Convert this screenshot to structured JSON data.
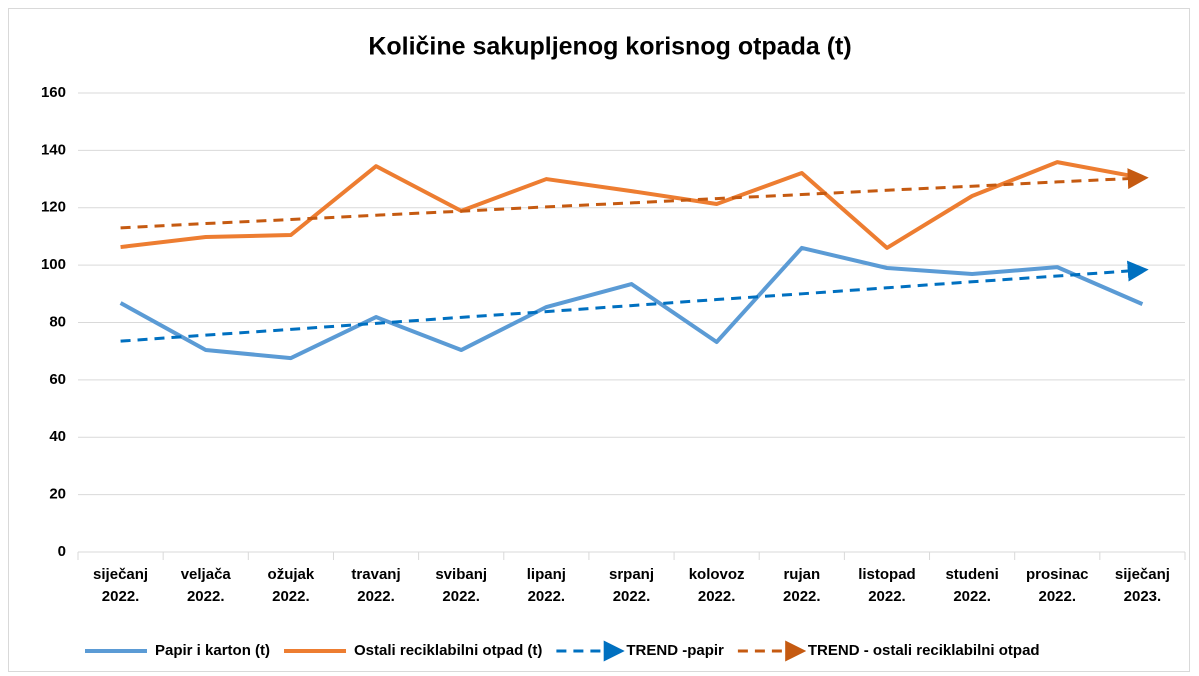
{
  "chart_data": {
    "type": "line",
    "title": "Količine sakupljenog korisnog otpada (t)",
    "categories": [
      "siječanj 2022.",
      "veljača 2022.",
      "ožujak 2022.",
      "travanj 2022.",
      "svibanj 2022.",
      "lipanj 2022.",
      "srpanj 2022.",
      "kolovoz 2022.",
      "rujan 2022.",
      "listopad 2022.",
      "studeni 2022.",
      "prosinac 2022.",
      "siječanj 2023."
    ],
    "series": [
      {
        "name": "Papir i karton (t)",
        "color": "#5b9bd5",
        "dashed": false,
        "arrow": false,
        "values": [
          86.8,
          70.4,
          67.6,
          81.9,
          70.4,
          85.4,
          93.4,
          73.2,
          106,
          99,
          96.9,
          99.3,
          86.4
        ]
      },
      {
        "name": "Ostali reciklabilni otpad (t)",
        "color": "#ed7d31",
        "dashed": false,
        "arrow": false,
        "values": [
          106.3,
          109.8,
          110.5,
          134.5,
          118.9,
          130,
          125.8,
          121.3,
          132.1,
          106,
          124.1,
          135.9,
          130.4
        ]
      },
      {
        "name": "TREND -papir",
        "color": "#0070c0",
        "dashed": true,
        "arrow": true,
        "values": [
          73.5,
          75.6,
          77.6,
          79.7,
          81.8,
          83.8,
          85.9,
          88.0,
          90.0,
          92.1,
          94.2,
          96.2,
          98.3
        ]
      },
      {
        "name": "TREND - ostali reciklabilni otpad",
        "color": "#c55a11",
        "dashed": true,
        "arrow": true,
        "values": [
          113.0,
          114.5,
          115.9,
          117.4,
          118.8,
          120.3,
          121.7,
          123.2,
          124.6,
          126.1,
          127.5,
          129.0,
          130.4
        ]
      }
    ],
    "ylim": [
      0,
      160
    ],
    "yticks": [
      0,
      20,
      40,
      60,
      80,
      100,
      120,
      140,
      160
    ],
    "grid": true,
    "legend": "bottom"
  }
}
